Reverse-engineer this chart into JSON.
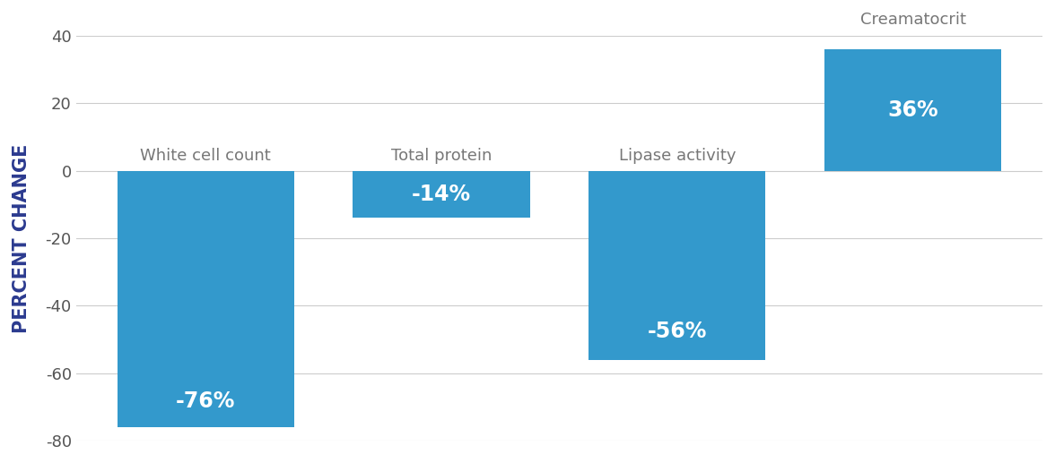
{
  "categories": [
    "White cell count",
    "Total protein",
    "Lipase activity",
    "Creamatocrit"
  ],
  "values": [
    -76,
    -14,
    -56,
    36
  ],
  "labels": [
    "-76%",
    "-14%",
    "-56%",
    "36%"
  ],
  "bar_color": "#3399CC",
  "ylabel": "PERCENT CHANGE",
  "ylim": [
    -80,
    40
  ],
  "yticks": [
    -80,
    -60,
    -40,
    -20,
    0,
    20,
    40
  ],
  "background_color": "#ffffff",
  "bar_label_color": "#ffffff",
  "category_label_color": "#777777",
  "ylabel_color": "#2B3A8F",
  "grid_color": "#cccccc",
  "bar_width": 0.75,
  "label_fontsize": 17,
  "category_fontsize": 13,
  "ylabel_fontsize": 15,
  "tick_fontsize": 13,
  "creamatocrit_label_yaxes": 1.02
}
